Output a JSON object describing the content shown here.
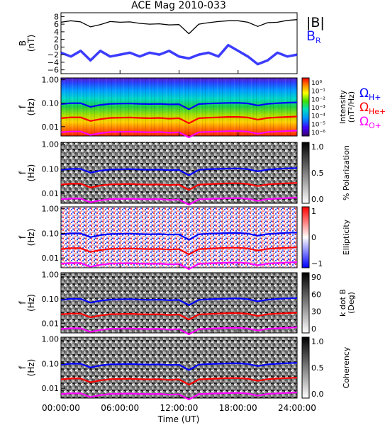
{
  "title": "ACE Mag 2010-033",
  "colors": {
    "b_total": "#000000",
    "b_radial": "#1a1aff",
    "omega_h": "#0000ff",
    "omega_he": "#ff0000",
    "omega_o": "#ff00ff"
  },
  "chart_data": [
    {
      "type": "line",
      "panel": "magnetic-field",
      "ylabel_lines": [
        "B",
        "(nT)"
      ],
      "y_ticks": [
        "8",
        "6",
        "4",
        "2",
        "0",
        "−2",
        "−4",
        "−6"
      ],
      "ylim": [
        -7,
        9
      ],
      "x": [
        0,
        1,
        2,
        3,
        4,
        5,
        6,
        7,
        8,
        9,
        10,
        11,
        12,
        13,
        14,
        15,
        16,
        17,
        18,
        19,
        20,
        21,
        22,
        23,
        24
      ],
      "series": [
        {
          "name": "|B|",
          "values": [
            6.5,
            6.9,
            6.6,
            5.3,
            5.9,
            6.7,
            6.5,
            6.6,
            6.2,
            6.0,
            6.1,
            5.8,
            5.9,
            3.5,
            6.0,
            6.4,
            6.7,
            6.9,
            6.9,
            6.5,
            5.4,
            6.4,
            6.5,
            7.0,
            7.2
          ]
        },
        {
          "name": "B_R",
          "values": [
            -1.5,
            -2.5,
            -1.0,
            -3.5,
            -1.0,
            -2.5,
            -2.0,
            -1.5,
            -2.5,
            -1.5,
            -2.0,
            -1.0,
            -2.5,
            -3.0,
            -2.0,
            -1.5,
            -2.5,
            0.5,
            -1.0,
            -2.5,
            -4.5,
            -3.5,
            -1.5,
            -2.5,
            -2.0
          ]
        }
      ]
    },
    {
      "type": "heatmap",
      "panel": "intensity",
      "ylabel_lines": [
        "f",
        "(Hz)"
      ],
      "y_ticks": [
        "1.00",
        "0.10",
        "0.01"
      ],
      "ylim": [
        0.004,
        1.2
      ],
      "y_scale": "log",
      "colorbar_label": "Intensity",
      "colorbar_unit": "(nT²/Hz)",
      "colorbar_ticks": [
        "10⁰",
        "10⁻¹",
        "10⁻²",
        "10⁻³",
        "10⁻⁴",
        "10⁻⁵",
        "10⁻⁶"
      ],
      "colormap": "rainbow"
    },
    {
      "type": "heatmap",
      "panel": "polarization",
      "ylabel_lines": [
        "f",
        "(Hz)"
      ],
      "y_ticks": [
        "1.00",
        "0.10",
        "0.01"
      ],
      "y_scale": "log",
      "colorbar_label": "% Polarization",
      "colorbar_ticks": [
        "1.0",
        "0.5",
        "0.0"
      ],
      "colormap": "grayscale"
    },
    {
      "type": "heatmap",
      "panel": "ellipticity",
      "ylabel_lines": [
        "f",
        "(Hz)"
      ],
      "y_ticks": [
        "1.00",
        "0.10",
        "0.01"
      ],
      "y_scale": "log",
      "colorbar_label": "Ellipticity",
      "colorbar_ticks": [
        "1",
        "0",
        "−1"
      ],
      "colormap": "blue-white-red"
    },
    {
      "type": "heatmap",
      "panel": "k-dot-b",
      "ylabel_lines": [
        "f",
        "(Hz)"
      ],
      "y_ticks": [
        "1.00",
        "0.10",
        "0.01"
      ],
      "y_scale": "log",
      "colorbar_label": "k dot B",
      "colorbar_unit": "(Deg)",
      "colorbar_ticks": [
        "90",
        "60",
        "30",
        "0"
      ],
      "colormap": "grayscale"
    },
    {
      "type": "heatmap",
      "panel": "coherency",
      "ylabel_lines": [
        "f",
        "(Hz)"
      ],
      "y_ticks": [
        "1.00",
        "0.10",
        "0.01"
      ],
      "y_scale": "log",
      "colorbar_label": "Coherency",
      "colorbar_ticks": [
        "1.0",
        "0.5",
        "0.0"
      ],
      "colormap": "grayscale"
    }
  ],
  "gyrofrequency_lines": {
    "x": [
      0,
      1,
      2,
      3,
      4,
      5,
      6,
      7,
      8,
      9,
      10,
      11,
      12,
      13,
      14,
      15,
      16,
      17,
      18,
      19,
      20,
      21,
      22,
      23,
      24
    ],
    "omega_h": [
      0.092,
      0.1,
      0.1,
      0.07,
      0.085,
      0.094,
      0.096,
      0.098,
      0.094,
      0.092,
      0.094,
      0.089,
      0.091,
      0.055,
      0.092,
      0.097,
      0.1,
      0.103,
      0.104,
      0.098,
      0.08,
      0.094,
      0.1,
      0.105,
      0.108
    ],
    "omega_he": [
      0.023,
      0.025,
      0.025,
      0.0175,
      0.021,
      0.0235,
      0.024,
      0.0245,
      0.0235,
      0.023,
      0.0235,
      0.022,
      0.023,
      0.014,
      0.023,
      0.024,
      0.025,
      0.026,
      0.026,
      0.0245,
      0.02,
      0.0235,
      0.025,
      0.026,
      0.027
    ],
    "omega_o": [
      0.0058,
      0.0062,
      0.0062,
      0.0044,
      0.0053,
      0.0059,
      0.006,
      0.0061,
      0.0059,
      0.0058,
      0.0059,
      0.0055,
      0.0057,
      0.0035,
      0.0058,
      0.006,
      0.0062,
      0.0064,
      0.0065,
      0.0061,
      0.005,
      0.0059,
      0.0062,
      0.0065,
      0.0068
    ]
  },
  "legends": {
    "b_total": "|B|",
    "b_radial_main": "B",
    "b_radial_sub": "R",
    "omega_symbol": "Ω",
    "omega_h_sub": "H+",
    "omega_he_sub": "He+",
    "omega_o_sub": "O+"
  },
  "x_axis": {
    "ticks": [
      "00:00:00",
      "06:00:00",
      "12:00:00",
      "18:00:00",
      "24:00:00"
    ],
    "tick_hours": [
      0,
      6,
      12,
      18,
      24
    ],
    "label": "Time (UT)"
  }
}
